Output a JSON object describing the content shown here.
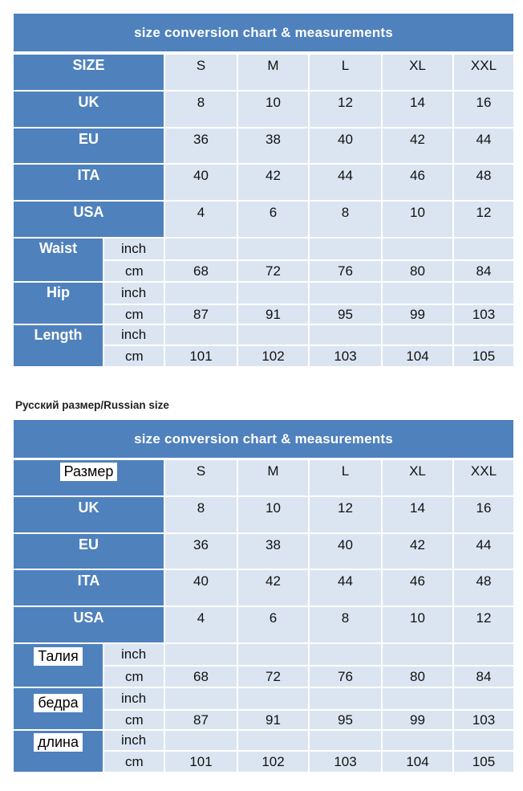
{
  "tables": [
    {
      "title": "size  conversion chart  & measurements",
      "header_label": "SIZE",
      "sizes": [
        "S",
        "M",
        "L",
        "XL",
        "XXL"
      ],
      "region_rows": [
        {
          "label": "UK",
          "values": [
            "8",
            "10",
            "12",
            "14",
            "16"
          ]
        },
        {
          "label": "EU",
          "values": [
            "36",
            "38",
            "40",
            "42",
            "44"
          ]
        },
        {
          "label": "ITA",
          "values": [
            "40",
            "42",
            "44",
            "46",
            "48"
          ]
        },
        {
          "label": "USA",
          "values": [
            "4",
            "6",
            "8",
            "10",
            "12"
          ]
        }
      ],
      "measure_rows": [
        {
          "label": "Waist",
          "inch_label": "inch",
          "cm_label": "cm",
          "cm_values": [
            "68",
            "72",
            "76",
            "80",
            "84"
          ]
        },
        {
          "label": "Hip",
          "inch_label": "inch",
          "cm_label": "cm",
          "cm_values": [
            "87",
            "91",
            "95",
            "99",
            "103"
          ]
        },
        {
          "label": "Length",
          "inch_label": "inch",
          "cm_label": "cm",
          "cm_values": [
            "101",
            "102",
            "103",
            "104",
            "105"
          ]
        }
      ]
    },
    {
      "caption": "Русский размер/Russian size",
      "title": "size  conversion chart  & measurements",
      "header_label": "Размер",
      "sizes": [
        "S",
        "M",
        "L",
        "XL",
        "XXL"
      ],
      "region_rows": [
        {
          "label": "UK",
          "values": [
            "8",
            "10",
            "12",
            "14",
            "16"
          ]
        },
        {
          "label": "EU",
          "values": [
            "36",
            "38",
            "40",
            "42",
            "44"
          ]
        },
        {
          "label": "ITA",
          "values": [
            "40",
            "42",
            "44",
            "46",
            "48"
          ]
        },
        {
          "label": "USA",
          "values": [
            "4",
            "6",
            "8",
            "10",
            "12"
          ]
        }
      ],
      "measure_rows": [
        {
          "label": "Талия",
          "inch_label": "inch",
          "cm_label": "cm",
          "cm_values": [
            "68",
            "72",
            "76",
            "80",
            "84"
          ]
        },
        {
          "label": "бедра",
          "inch_label": "inch",
          "cm_label": "cm",
          "cm_values": [
            "87",
            "91",
            "95",
            "99",
            "103"
          ]
        },
        {
          "label": "длина",
          "inch_label": "inch",
          "cm_label": "cm",
          "cm_values": [
            "101",
            "102",
            "103",
            "104",
            "105"
          ]
        }
      ]
    }
  ],
  "colors": {
    "header_blue": "#4f81bd",
    "cell_light": "#dbe5f1",
    "page_bg": "#ffffff"
  }
}
